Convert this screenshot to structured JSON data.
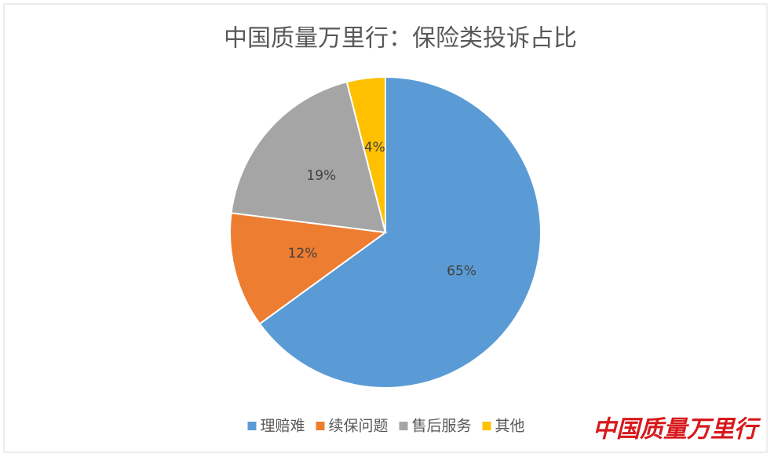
{
  "chart_data": {
    "type": "pie",
    "title": "中国质量万里行：保险类投诉占比",
    "categories": [
      "理赔难",
      "续保问题",
      "售后服务",
      "其他"
    ],
    "values": [
      65,
      12,
      19,
      4
    ],
    "value_labels": [
      "65%",
      "12%",
      "19%",
      "4%"
    ],
    "colors": [
      "#5b9bd5",
      "#ed7d31",
      "#a5a5a5",
      "#ffc000"
    ],
    "legend": "bottom"
  },
  "watermark": "中国质量万里行"
}
